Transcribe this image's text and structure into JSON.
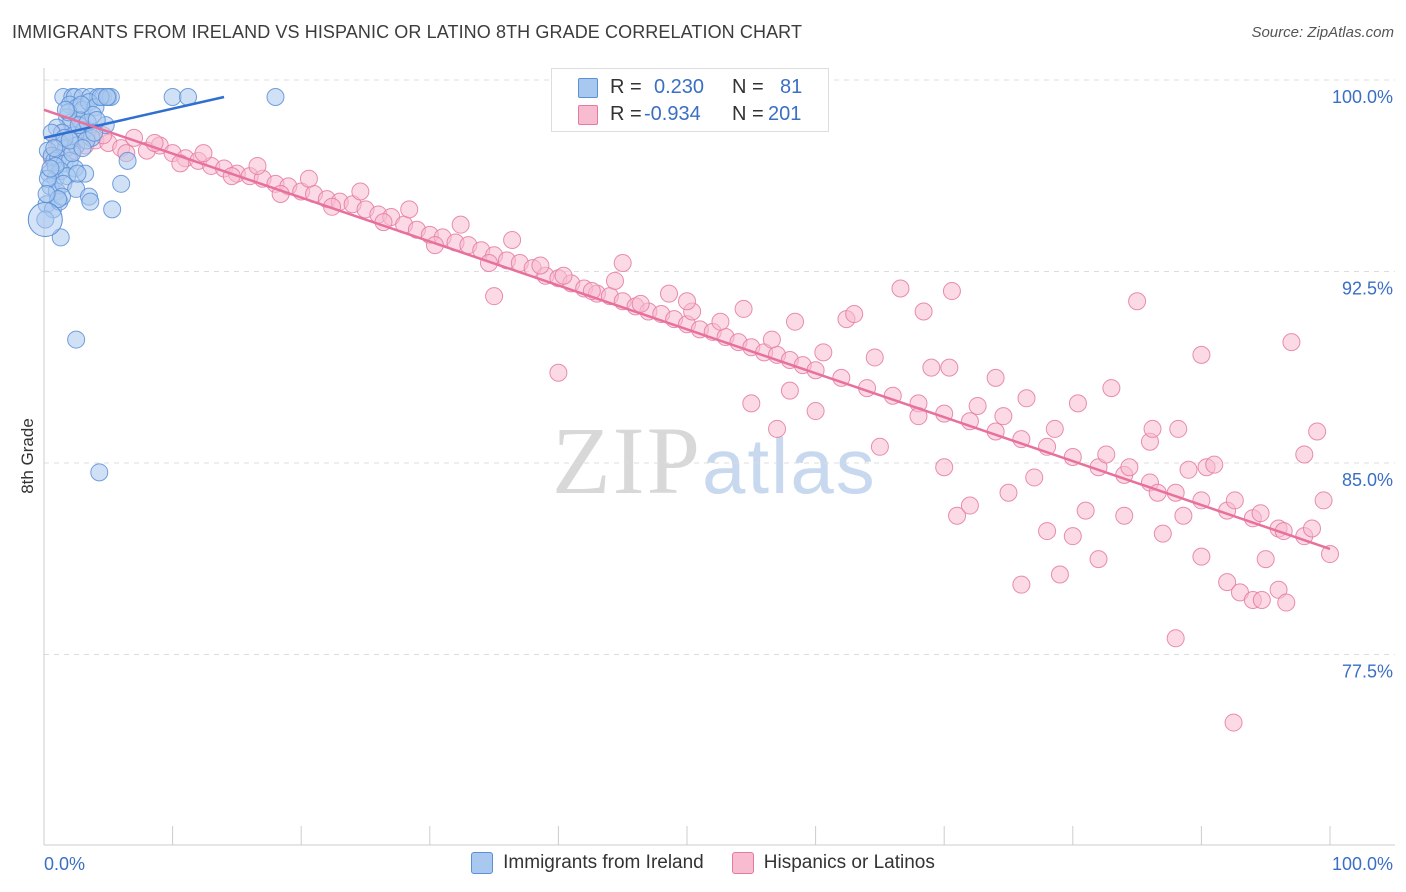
{
  "title": "IMMIGRANTS FROM IRELAND VS HISPANIC OR LATINO 8TH GRADE CORRELATION CHART",
  "source": "Source: ZipAtlas.com",
  "watermark": {
    "zip": "ZIP",
    "atlas": "atlas"
  },
  "stats": {
    "r_label": "R =",
    "n_label": "N =",
    "rows": [
      {
        "r": "0.230",
        "n": "81",
        "color": "#a9c8ef",
        "stroke": "#5b8fd6"
      },
      {
        "r": "-0.934",
        "n": "201",
        "color": "#f7bcd0",
        "stroke": "#e57aa0"
      }
    ]
  },
  "chart_data": {
    "type": "scatter",
    "xlabel": "",
    "ylabel": "8th Grade",
    "x_tick_labels": [
      "0.0%",
      "100.0%"
    ],
    "y_tick_labels": [
      "100.0%",
      "92.5%",
      "85.0%",
      "77.5%"
    ],
    "y_ticks": [
      100.0,
      92.5,
      85.0,
      77.5
    ],
    "xlim": [
      0,
      100
    ],
    "ylim": [
      70.0,
      100.7
    ],
    "grid": "horizontal dashed",
    "legend": "bottom-center",
    "series": [
      {
        "name": "Immigrants from Ireland",
        "color": "#a9c8ef",
        "stroke": "#5b8fd6",
        "trend_color": "#2f6fd0",
        "trend": [
          [
            0.0,
            98.4
          ],
          [
            14.0,
            100.0
          ]
        ],
        "points": [
          [
            1.5,
            100.0
          ],
          [
            2.2,
            100.0
          ],
          [
            2.4,
            100.0
          ],
          [
            3.0,
            100.0
          ],
          [
            3.6,
            100.0
          ],
          [
            4.2,
            100.0
          ],
          [
            4.6,
            100.0
          ],
          [
            5.0,
            100.0
          ],
          [
            5.2,
            100.0
          ],
          [
            10.0,
            100.0
          ],
          [
            11.2,
            100.0
          ],
          [
            18.0,
            100.0
          ],
          [
            2.0,
            99.7
          ],
          [
            2.6,
            99.6
          ],
          [
            3.0,
            99.5
          ],
          [
            3.5,
            99.8
          ],
          [
            4.0,
            99.6
          ],
          [
            1.8,
            99.2
          ],
          [
            2.1,
            99.0
          ],
          [
            2.8,
            99.1
          ],
          [
            3.8,
            99.3
          ],
          [
            4.8,
            98.9
          ],
          [
            1.0,
            98.8
          ],
          [
            1.4,
            98.6
          ],
          [
            2.3,
            98.5
          ],
          [
            3.1,
            98.7
          ],
          [
            3.7,
            98.4
          ],
          [
            1.2,
            98.2
          ],
          [
            1.7,
            98.0
          ],
          [
            2.5,
            98.1
          ],
          [
            3.3,
            98.3
          ],
          [
            0.3,
            97.9
          ],
          [
            0.6,
            97.7
          ],
          [
            0.8,
            97.5
          ],
          [
            1.1,
            97.6
          ],
          [
            1.6,
            97.4
          ],
          [
            2.0,
            97.5
          ],
          [
            2.4,
            97.2
          ],
          [
            0.4,
            97.0
          ],
          [
            0.9,
            96.8
          ],
          [
            1.3,
            97.1
          ],
          [
            1.8,
            96.9
          ],
          [
            3.2,
            97.0
          ],
          [
            6.5,
            97.5
          ],
          [
            0.5,
            96.5
          ],
          [
            1.0,
            96.3
          ],
          [
            1.5,
            96.6
          ],
          [
            2.5,
            96.4
          ],
          [
            3.5,
            96.1
          ],
          [
            6.0,
            96.6
          ],
          [
            0.2,
            95.8
          ],
          [
            0.7,
            95.6
          ],
          [
            1.2,
            95.9
          ],
          [
            3.6,
            95.9
          ],
          [
            5.3,
            95.6
          ],
          [
            0.1,
            95.2
          ],
          [
            1.3,
            94.5
          ],
          [
            2.5,
            90.5
          ],
          [
            4.3,
            85.3
          ],
          [
            0.6,
            98.6
          ],
          [
            1.9,
            99.4
          ],
          [
            2.7,
            98.9
          ],
          [
            3.4,
            99.0
          ],
          [
            4.1,
            99.1
          ],
          [
            0.9,
            97.3
          ],
          [
            1.4,
            96.1
          ],
          [
            2.2,
            97.8
          ],
          [
            3.9,
            98.6
          ],
          [
            0.3,
            96.8
          ],
          [
            1.6,
            98.4
          ],
          [
            2.9,
            99.7
          ],
          [
            4.4,
            100.0
          ],
          [
            0.8,
            98.0
          ],
          [
            1.1,
            96.0
          ],
          [
            2.0,
            98.3
          ],
          [
            3.0,
            98.0
          ],
          [
            0.5,
            97.2
          ],
          [
            1.7,
            99.5
          ],
          [
            2.6,
            97.0
          ],
          [
            4.9,
            100.0
          ],
          [
            0.2,
            96.2
          ]
        ]
      },
      {
        "name": "Hispanics or Latinos",
        "color": "#f7bcd0",
        "stroke": "#e57aa0",
        "trend_color": "#e8709c",
        "trend": [
          [
            0.0,
            99.5
          ],
          [
            100.0,
            82.3
          ]
        ],
        "points": [
          [
            1.0,
            98.2
          ],
          [
            1.8,
            98.0
          ],
          [
            2.5,
            98.4
          ],
          [
            3.2,
            98.1
          ],
          [
            4.0,
            98.3
          ],
          [
            5.0,
            98.2
          ],
          [
            6.0,
            98.0
          ],
          [
            7.0,
            98.4
          ],
          [
            8.0,
            97.9
          ],
          [
            9.0,
            98.1
          ],
          [
            10.0,
            97.8
          ],
          [
            11.0,
            97.6
          ],
          [
            12.0,
            97.5
          ],
          [
            13.0,
            97.3
          ],
          [
            14.0,
            97.2
          ],
          [
            15.0,
            97.0
          ],
          [
            16.0,
            96.9
          ],
          [
            17.0,
            96.8
          ],
          [
            18.0,
            96.6
          ],
          [
            19.0,
            96.5
          ],
          [
            20.0,
            96.3
          ],
          [
            21.0,
            96.2
          ],
          [
            22.0,
            96.0
          ],
          [
            23.0,
            95.9
          ],
          [
            24.0,
            95.8
          ],
          [
            25.0,
            95.6
          ],
          [
            26.0,
            95.4
          ],
          [
            27.0,
            95.3
          ],
          [
            28.0,
            95.0
          ],
          [
            29.0,
            94.8
          ],
          [
            30.0,
            94.6
          ],
          [
            31.0,
            94.5
          ],
          [
            32.0,
            94.3
          ],
          [
            33.0,
            94.2
          ],
          [
            34.0,
            94.0
          ],
          [
            35.0,
            93.8
          ],
          [
            36.0,
            93.6
          ],
          [
            37.0,
            93.5
          ],
          [
            38.0,
            93.3
          ],
          [
            39.0,
            93.0
          ],
          [
            40.0,
            92.9
          ],
          [
            41.0,
            92.7
          ],
          [
            42.0,
            92.5
          ],
          [
            43.0,
            92.3
          ],
          [
            44.0,
            92.2
          ],
          [
            45.0,
            92.0
          ],
          [
            46.0,
            91.8
          ],
          [
            47.0,
            91.6
          ],
          [
            48.0,
            91.5
          ],
          [
            49.0,
            91.3
          ],
          [
            50.0,
            91.1
          ],
          [
            51.0,
            90.9
          ],
          [
            52.0,
            90.8
          ],
          [
            53.0,
            90.6
          ],
          [
            54.0,
            90.4
          ],
          [
            55.0,
            90.2
          ],
          [
            56.0,
            90.0
          ],
          [
            57.0,
            89.9
          ],
          [
            58.0,
            89.7
          ],
          [
            59.0,
            89.5
          ],
          [
            60.0,
            89.3
          ],
          [
            62.0,
            89.0
          ],
          [
            64.0,
            88.6
          ],
          [
            66.0,
            88.3
          ],
          [
            68.0,
            88.0
          ],
          [
            70.0,
            87.6
          ],
          [
            72.0,
            87.3
          ],
          [
            74.0,
            86.9
          ],
          [
            76.0,
            86.6
          ],
          [
            78.0,
            86.3
          ],
          [
            80.0,
            85.9
          ],
          [
            82.0,
            85.5
          ],
          [
            84.0,
            85.2
          ],
          [
            86.0,
            84.9
          ],
          [
            88.0,
            84.5
          ],
          [
            90.0,
            84.2
          ],
          [
            92.0,
            83.8
          ],
          [
            94.0,
            83.5
          ],
          [
            96.0,
            83.1
          ],
          [
            98.0,
            82.8
          ],
          [
            100.0,
            82.1
          ],
          [
            0.6,
            97.6
          ],
          [
            1.4,
            98.6
          ],
          [
            2.2,
            97.9
          ],
          [
            3.0,
            98.9
          ],
          [
            4.6,
            98.5
          ],
          [
            6.4,
            97.8
          ],
          [
            8.6,
            98.2
          ],
          [
            10.6,
            97.4
          ],
          [
            12.4,
            97.8
          ],
          [
            14.6,
            96.9
          ],
          [
            16.6,
            97.3
          ],
          [
            18.4,
            96.2
          ],
          [
            20.6,
            96.8
          ],
          [
            22.4,
            95.7
          ],
          [
            24.6,
            96.3
          ],
          [
            26.4,
            95.1
          ],
          [
            28.4,
            95.6
          ],
          [
            30.4,
            94.2
          ],
          [
            32.4,
            95.0
          ],
          [
            34.6,
            93.5
          ],
          [
            36.4,
            94.4
          ],
          [
            38.6,
            93.4
          ],
          [
            40.4,
            93.0
          ],
          [
            42.6,
            92.4
          ],
          [
            44.4,
            92.8
          ],
          [
            46.4,
            91.9
          ],
          [
            48.6,
            92.3
          ],
          [
            50.4,
            91.6
          ],
          [
            52.6,
            91.2
          ],
          [
            54.4,
            91.7
          ],
          [
            56.6,
            90.5
          ],
          [
            58.4,
            91.2
          ],
          [
            60.6,
            90.0
          ],
          [
            62.4,
            91.3
          ],
          [
            64.6,
            89.8
          ],
          [
            66.6,
            92.5
          ],
          [
            68.4,
            91.6
          ],
          [
            70.4,
            89.4
          ],
          [
            72.6,
            87.9
          ],
          [
            74.6,
            87.5
          ],
          [
            76.4,
            88.2
          ],
          [
            78.6,
            87.0
          ],
          [
            80.4,
            88.0
          ],
          [
            82.6,
            86.0
          ],
          [
            84.4,
            85.5
          ],
          [
            86.6,
            84.5
          ],
          [
            88.6,
            83.6
          ],
          [
            90.4,
            85.5
          ],
          [
            92.6,
            84.2
          ],
          [
            94.6,
            83.7
          ],
          [
            96.4,
            83.0
          ],
          [
            98.6,
            83.1
          ],
          [
            35.0,
            92.2
          ],
          [
            40.0,
            89.2
          ],
          [
            45.0,
            93.5
          ],
          [
            50.0,
            92.0
          ],
          [
            55.0,
            88.0
          ],
          [
            57.0,
            87.0
          ],
          [
            60.0,
            87.7
          ],
          [
            65.0,
            86.3
          ],
          [
            68.0,
            87.5
          ],
          [
            69.0,
            89.4
          ],
          [
            70.0,
            85.5
          ],
          [
            71.0,
            83.6
          ],
          [
            72.0,
            84.0
          ],
          [
            75.0,
            84.5
          ],
          [
            76.0,
            80.9
          ],
          [
            77.0,
            85.1
          ],
          [
            78.0,
            83.0
          ],
          [
            79.0,
            81.3
          ],
          [
            80.0,
            82.8
          ],
          [
            81.0,
            83.8
          ],
          [
            82.0,
            81.9
          ],
          [
            83.0,
            88.6
          ],
          [
            84.0,
            83.6
          ],
          [
            85.0,
            92.0
          ],
          [
            86.0,
            86.5
          ],
          [
            87.0,
            82.9
          ],
          [
            88.0,
            78.8
          ],
          [
            89.0,
            85.4
          ],
          [
            90.0,
            82.0
          ],
          [
            91.0,
            85.6
          ],
          [
            92.0,
            81.0
          ],
          [
            93.0,
            80.6
          ],
          [
            94.0,
            80.3
          ],
          [
            95.0,
            81.9
          ],
          [
            96.0,
            80.7
          ],
          [
            97.0,
            90.4
          ],
          [
            98.0,
            86.0
          ],
          [
            99.0,
            86.9
          ],
          [
            92.5,
            75.5
          ],
          [
            94.7,
            80.3
          ],
          [
            96.6,
            80.2
          ],
          [
            99.5,
            84.2
          ],
          [
            90.0,
            89.9
          ],
          [
            88.2,
            87.0
          ],
          [
            86.2,
            87.0
          ],
          [
            70.6,
            92.4
          ],
          [
            63.0,
            91.5
          ],
          [
            58.0,
            88.5
          ],
          [
            74.0,
            89.0
          ]
        ]
      }
    ]
  },
  "legend_items": [
    "Immigrants from Ireland",
    "Hispanics or Latinos"
  ]
}
